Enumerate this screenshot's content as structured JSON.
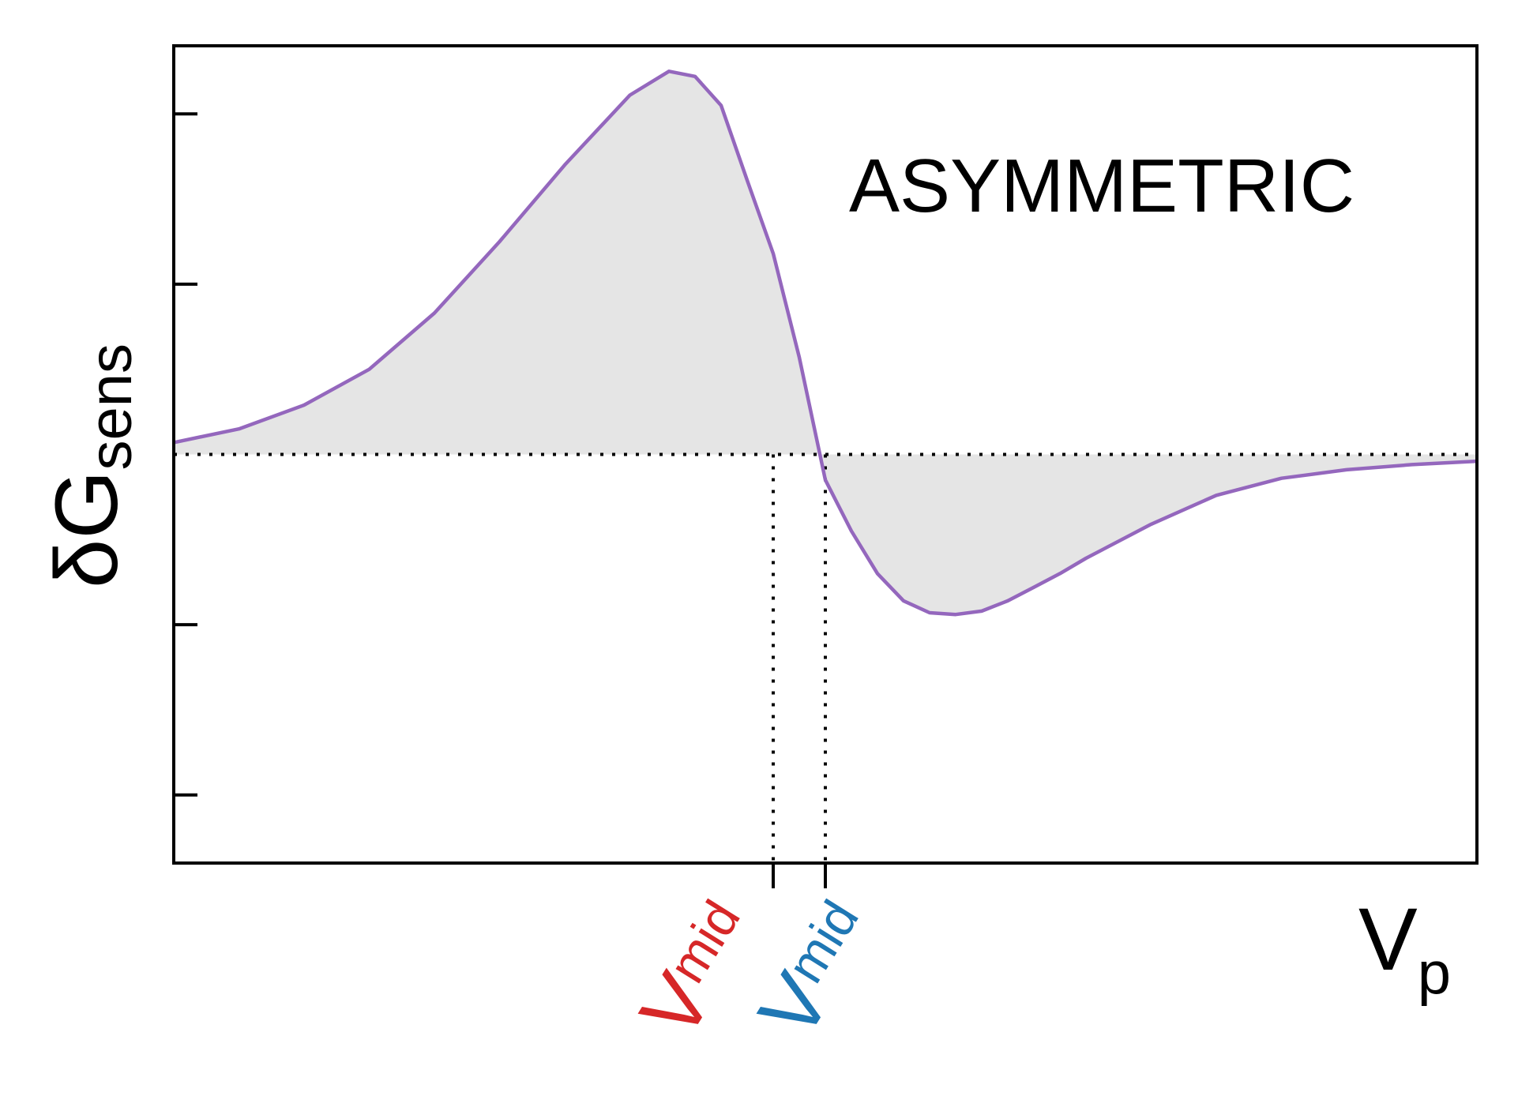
{
  "chart_data": {
    "type": "area",
    "title": "",
    "annotation": "ASYMMETRIC",
    "xlabel": {
      "main": "V",
      "sub": "p"
    },
    "ylabel": {
      "main": "δG",
      "sub": "sens"
    },
    "xlim": [
      0,
      10
    ],
    "ylim": [
      -2.4,
      2.4
    ],
    "ytick_values": [
      -2,
      -1,
      1,
      2
    ],
    "baseline": 0,
    "x_markers": [
      {
        "x": 4.6,
        "label_main": "V",
        "label_sub": "mid",
        "color": "#d62728"
      },
      {
        "x": 5.0,
        "label_main": "V",
        "label_sub": "mid",
        "color": "#1f77b4"
      }
    ],
    "series": [
      {
        "color": "#9467bd",
        "fill": "#e5e5e5",
        "x": [
          0,
          0.5,
          1.0,
          1.5,
          2.0,
          2.5,
          3.0,
          3.5,
          3.8,
          4.0,
          4.2,
          4.4,
          4.6,
          4.8,
          5.0,
          5.2,
          5.4,
          5.6,
          5.8,
          6.0,
          6.2,
          6.4,
          6.6,
          6.8,
          7.0,
          7.5,
          8.0,
          8.5,
          9.0,
          9.5,
          10.0
        ],
        "y": [
          0.07,
          0.15,
          0.29,
          0.5,
          0.83,
          1.25,
          1.7,
          2.11,
          2.25,
          2.22,
          2.05,
          1.61,
          1.18,
          0.57,
          -0.15,
          -0.45,
          -0.7,
          -0.86,
          -0.93,
          -0.94,
          -0.92,
          -0.86,
          -0.78,
          -0.7,
          -0.61,
          -0.41,
          -0.24,
          -0.14,
          -0.09,
          -0.06,
          -0.04
        ]
      }
    ]
  }
}
